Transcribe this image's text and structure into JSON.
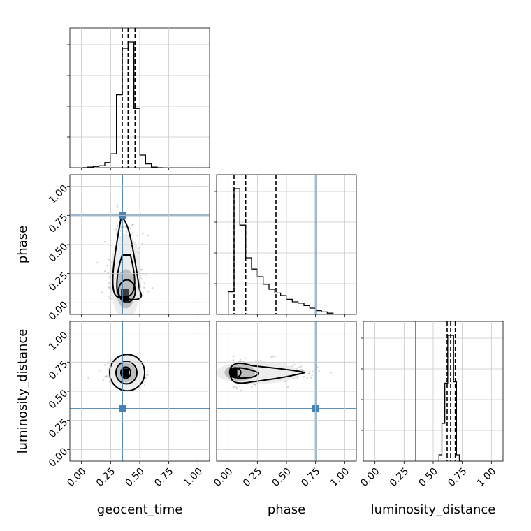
{
  "chart_data": {
    "type": "corner",
    "parameters": [
      "geocent_time",
      "phase",
      "luminosity_distance"
    ],
    "range": [
      -0.1,
      1.1
    ],
    "ticks": [
      0.0,
      0.25,
      0.5,
      0.75,
      1.0
    ],
    "tick_labels": [
      "0.00",
      "0.25",
      "0.50",
      "0.75",
      "1.00"
    ],
    "truths": {
      "geocent_time": 0.35,
      "phase": 0.75,
      "luminosity_distance": 0.35
    },
    "truth_color": "#4682b4",
    "grid": true,
    "histograms": [
      {
        "parameter": "geocent_time",
        "bin_edges": [
          0.0,
          0.05,
          0.1,
          0.15,
          0.2,
          0.25,
          0.3,
          0.35,
          0.4,
          0.45,
          0.5,
          0.55,
          0.6,
          0.65,
          0.7
        ],
        "counts": [
          0.0,
          0.005,
          0.01,
          0.015,
          0.04,
          0.11,
          0.58,
          0.95,
          1.0,
          0.47,
          0.1,
          0.03,
          0.005,
          0.0
        ],
        "quantiles": [
          0.35,
          0.4,
          0.46
        ]
      },
      {
        "parameter": "phase",
        "bin_edges": [
          0.0,
          0.05,
          0.1,
          0.15,
          0.2,
          0.25,
          0.3,
          0.35,
          0.4,
          0.45,
          0.5,
          0.55,
          0.6,
          0.65,
          0.7,
          0.75,
          0.8,
          0.85,
          0.9
        ],
        "counts": [
          0.18,
          1.0,
          0.71,
          0.45,
          0.36,
          0.3,
          0.24,
          0.2,
          0.17,
          0.15,
          0.12,
          0.1,
          0.09,
          0.07,
          0.05,
          0.03,
          0.02,
          0.01
        ],
        "quantiles": [
          0.05,
          0.15,
          0.41
        ]
      },
      {
        "parameter": "luminosity_distance",
        "bin_edges": [
          0.55,
          0.575,
          0.6,
          0.625,
          0.65,
          0.675,
          0.7,
          0.725,
          0.75
        ],
        "counts": [
          0.05,
          0.3,
          0.62,
          1.0,
          1.0,
          0.63,
          0.05,
          0.0
        ],
        "quantiles": [
          0.62,
          0.65,
          0.69
        ]
      }
    ],
    "panels_2d": [
      {
        "x": "geocent_time",
        "y": "phase",
        "peak": [
          0.38,
          0.07
        ]
      },
      {
        "x": "geocent_time",
        "y": "luminosity_distance",
        "peak": [
          0.38,
          0.66
        ]
      },
      {
        "x": "phase",
        "y": "luminosity_distance",
        "peak": [
          0.06,
          0.66
        ]
      }
    ]
  }
}
